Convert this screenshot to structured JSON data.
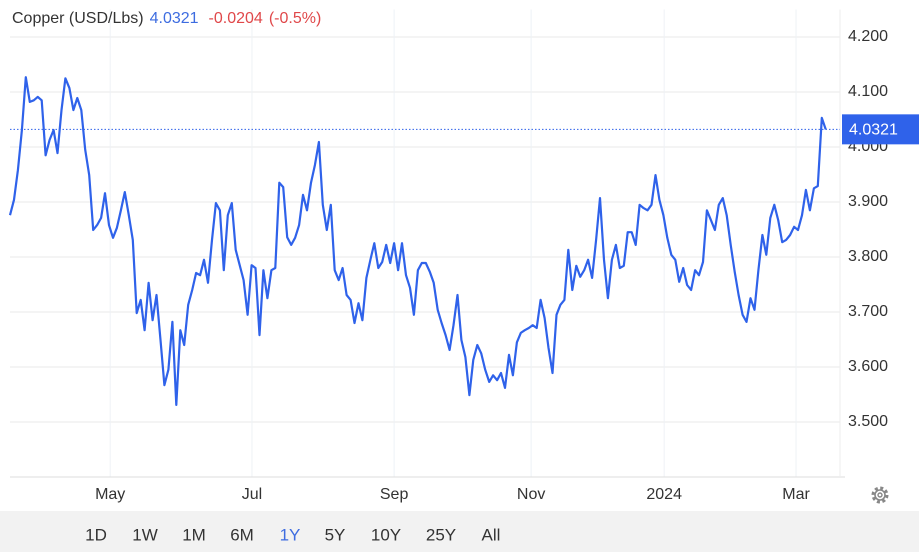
{
  "chart_data": {
    "type": "line",
    "title": "Copper (USD/Lbs)",
    "change": -0.0204,
    "change_pct": "(-0.5%)",
    "series": [
      {
        "color": "#2f62ea",
        "values": [
          3.876,
          3.904,
          3.958,
          4.031,
          4.127,
          4.082,
          4.085,
          4.091,
          4.085,
          3.985,
          4.013,
          4.031,
          3.989,
          4.067,
          4.125,
          4.107,
          4.067,
          4.089,
          4.067,
          3.995,
          3.949,
          3.849,
          3.858,
          3.871,
          3.916,
          3.858,
          3.835,
          3.853,
          3.885,
          3.918,
          3.876,
          3.831,
          3.698,
          3.722,
          3.667,
          3.753,
          3.685,
          3.731,
          3.649,
          3.567,
          3.595,
          3.682,
          3.531,
          3.667,
          3.64,
          3.713,
          3.74,
          3.771,
          3.767,
          3.795,
          3.753,
          3.831,
          3.898,
          3.885,
          3.776,
          3.876,
          3.898,
          3.813,
          3.785,
          3.758,
          3.695,
          3.785,
          3.78,
          3.658,
          3.776,
          3.725,
          3.776,
          3.78,
          3.935,
          3.927,
          3.836,
          3.822,
          3.835,
          3.858,
          3.913,
          3.885,
          3.935,
          3.967,
          4.009,
          3.895,
          3.849,
          3.895,
          3.776,
          3.758,
          3.78,
          3.731,
          3.722,
          3.68,
          3.716,
          3.685,
          3.762,
          3.795,
          3.825,
          3.78,
          3.791,
          3.822,
          3.789,
          3.825,
          3.776,
          3.825,
          3.767,
          3.744,
          3.695,
          3.776,
          3.789,
          3.789,
          3.773,
          3.753,
          3.704,
          3.68,
          3.658,
          3.631,
          3.676,
          3.731,
          3.649,
          3.618,
          3.549,
          3.613,
          3.64,
          3.625,
          3.595,
          3.573,
          3.585,
          3.576,
          3.589,
          3.562,
          3.622,
          3.585,
          3.645,
          3.662,
          3.667,
          3.671,
          3.676,
          3.671,
          3.722,
          3.689,
          3.635,
          3.589,
          3.695,
          3.713,
          3.722,
          3.813,
          3.74,
          3.784,
          3.764,
          3.776,
          3.795,
          3.762,
          3.831,
          3.907,
          3.795,
          3.725,
          3.795,
          3.822,
          3.78,
          3.784,
          3.845,
          3.845,
          3.822,
          3.895,
          3.889,
          3.885,
          3.895,
          3.949,
          3.904,
          3.876,
          3.835,
          3.804,
          3.795,
          3.755,
          3.78,
          3.749,
          3.74,
          3.776,
          3.767,
          3.791,
          3.885,
          3.867,
          3.849,
          3.895,
          3.907,
          3.876,
          3.822,
          3.773,
          3.731,
          3.695,
          3.682,
          3.725,
          3.704,
          3.776,
          3.84,
          3.804,
          3.871,
          3.895,
          3.867,
          3.827,
          3.831,
          3.84,
          3.855,
          3.849,
          3.876,
          3.922,
          3.885,
          3.925,
          3.929,
          4.053,
          4.0321
        ]
      }
    ],
    "xlim": [
      0,
      209.6
    ],
    "xticks": [
      {
        "value": 25.3,
        "label": "May"
      },
      {
        "value": 61.1,
        "label": "Jul"
      },
      {
        "value": 97,
        "label": "Sep"
      },
      {
        "value": 131.6,
        "label": "Nov"
      },
      {
        "value": 165.2,
        "label": "2024"
      },
      {
        "value": 198.5,
        "label": "Mar"
      }
    ],
    "ylim": [
      3.4,
      4.25
    ],
    "yticks": [
      {
        "value": 3.5,
        "label": "3.500"
      },
      {
        "value": 3.6,
        "label": "3.600"
      },
      {
        "value": 3.7,
        "label": "3.700"
      },
      {
        "value": 3.8,
        "label": "3.800"
      },
      {
        "value": 3.9,
        "label": "3.900"
      },
      {
        "value": 4.0,
        "label": "4.000"
      },
      {
        "value": 4.1,
        "label": "4.100"
      },
      {
        "value": 4.2,
        "label": "4.200"
      }
    ],
    "grid": true,
    "ranges": [
      "1D",
      "1W",
      "1M",
      "6M",
      "1Y",
      "5Y",
      "10Y",
      "25Y",
      "All"
    ],
    "active_range": 4
  }
}
